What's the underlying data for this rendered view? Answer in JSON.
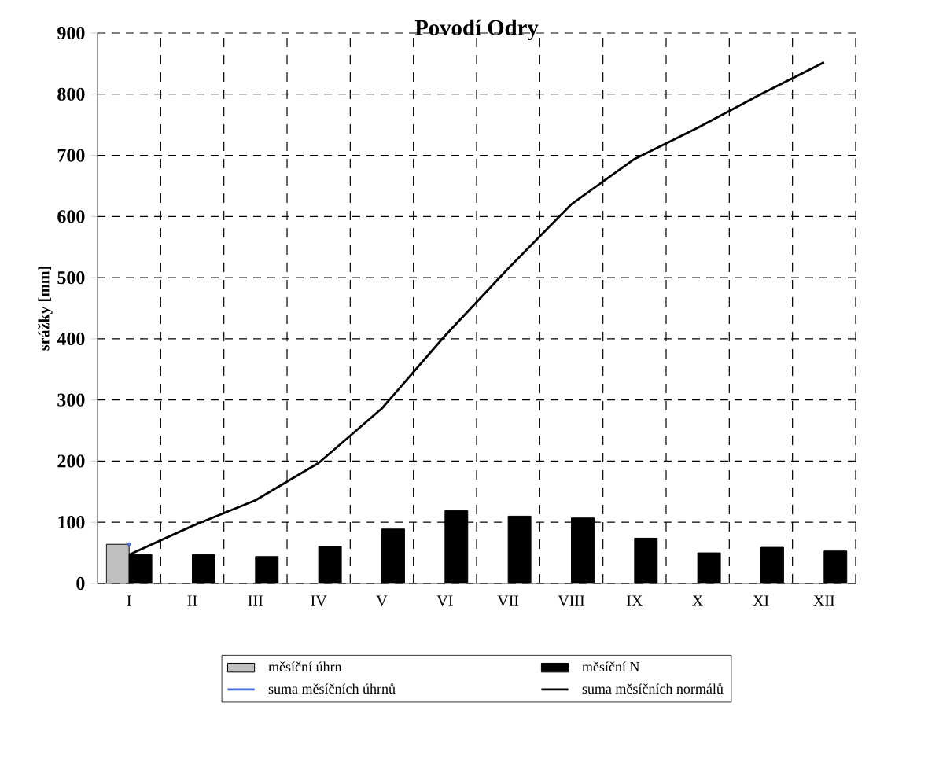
{
  "chart_data": {
    "type": "bar",
    "title": "Povodí Odry",
    "ylabel": "srážky [mm]",
    "categories": [
      "I",
      "II",
      "III",
      "IV",
      "V",
      "VI",
      "VII",
      "VIII",
      "IX",
      "X",
      "XI",
      "XII"
    ],
    "series": [
      {
        "name": "měsíční úhrn",
        "color": "#c0c0c0",
        "values": [
          64,
          null,
          null,
          null,
          null,
          null,
          null,
          null,
          null,
          null,
          null,
          null
        ]
      },
      {
        "name": "měsíční N",
        "color": "#000000",
        "values": [
          47,
          47,
          44,
          61,
          89,
          119,
          110,
          107,
          74,
          50,
          59,
          53
        ]
      },
      {
        "name": "suma měsíčních úhrnů",
        "type": "line",
        "color": "#4a6fe3",
        "values": [
          64,
          null,
          null,
          null,
          null,
          null,
          null,
          null,
          null,
          null,
          null,
          null
        ]
      },
      {
        "name": "suma měsíčních normálů",
        "type": "line",
        "color": "#000000",
        "values": [
          47,
          94,
          136,
          197,
          286,
          405,
          515,
          620,
          694,
          745,
          800,
          852
        ]
      }
    ],
    "ylim": [
      0,
      900
    ],
    "yticks": [
      0,
      100,
      200,
      300,
      400,
      500,
      600,
      700,
      800,
      900
    ],
    "grid": true,
    "legend": "bottom",
    "marker": "none",
    "line_style": "solid"
  }
}
